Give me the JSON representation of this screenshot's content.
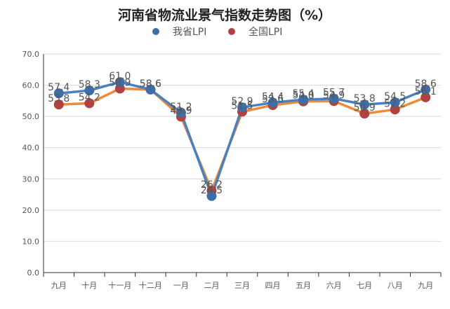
{
  "chart_data": {
    "type": "line",
    "title": "河南省物流业景气指数走势图（%）",
    "xlabel": "",
    "ylabel": "",
    "ylim": [
      0,
      70
    ],
    "y_ticks": [
      "0.0",
      "10.0",
      "20.0",
      "30.0",
      "40.0",
      "50.0",
      "60.0",
      "70.0"
    ],
    "categories": [
      "九月",
      "十月",
      "十一月",
      "十二月",
      "一月",
      "二月",
      "三月",
      "四月",
      "五月",
      "六月",
      "七月",
      "八月",
      "九月"
    ],
    "grid": true,
    "legend_position": "top-center",
    "series": [
      {
        "name": "我省LPI",
        "color": "#3E6EA8",
        "line_color": "#4A7FC1",
        "values": [
          57.4,
          58.3,
          61.0,
          58.6,
          51.2,
          24.5,
          52.9,
          54.4,
          55.4,
          55.7,
          53.8,
          54.5,
          58.6
        ],
        "labels": [
          "57.4",
          "58.3",
          "61.0",
          "58.6",
          "51.2",
          "24.5",
          "52.9",
          "54.4",
          "55.4",
          "55.7",
          "53.8",
          "54.5",
          "58.6"
        ]
      },
      {
        "name": "全国LPI",
        "color": "#B0423F",
        "line_color": "#ED8B3A",
        "values": [
          53.8,
          54.2,
          58.9,
          58.6,
          49.9,
          26.2,
          51.5,
          53.6,
          54.8,
          54.9,
          50.9,
          52.2,
          56.1
        ],
        "labels": [
          "53.8",
          "54.2",
          "58.9",
          "58.6",
          "49.9",
          "26.2",
          "51.5",
          "53.6",
          "54.8",
          "54.9",
          "50.9",
          "52.2",
          "56.1"
        ]
      }
    ]
  }
}
